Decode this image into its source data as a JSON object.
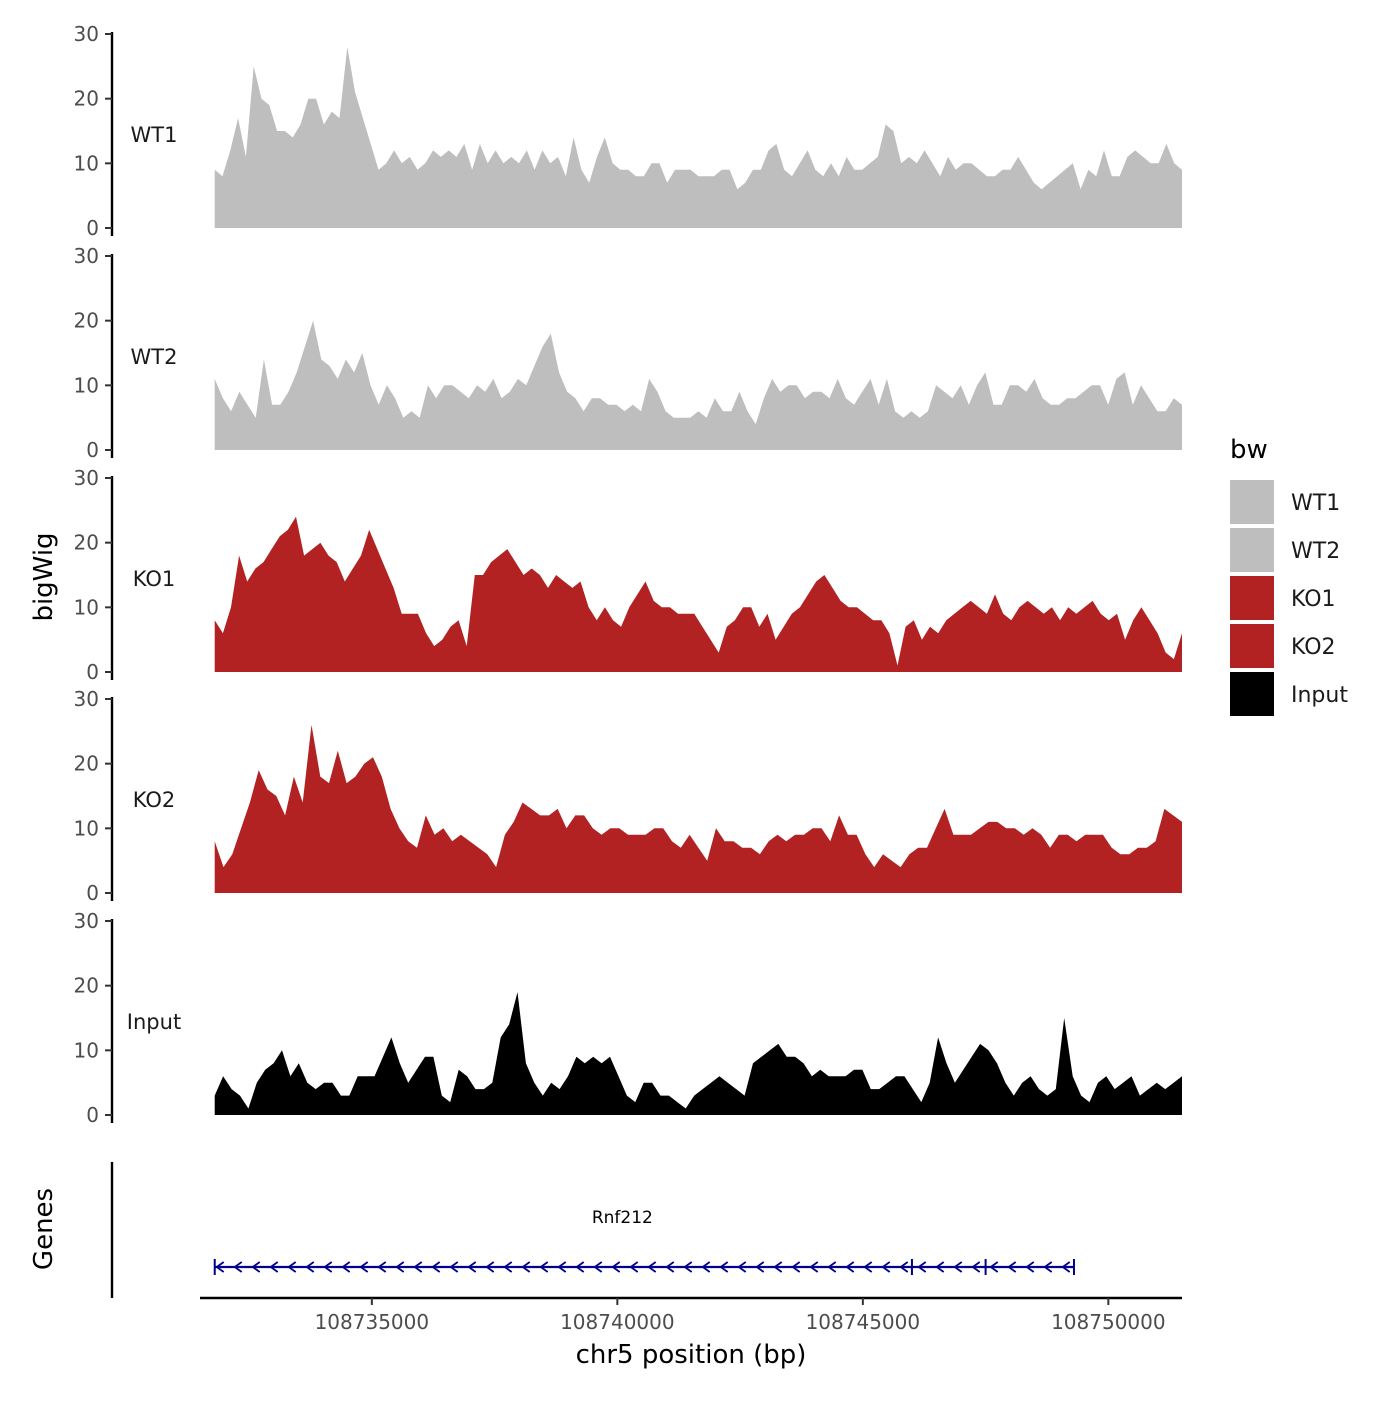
{
  "chart_data": {
    "type": "area",
    "x_title": "chr5 position (bp)",
    "y_title": "bigWig",
    "genes_title": "Genes",
    "xlim": [
      108731500,
      108751500
    ],
    "x_ticks": [
      108735000,
      108740000,
      108745000,
      108750000
    ],
    "x_tick_labels": [
      "108735000",
      "108740000",
      "108745000",
      "108750000"
    ],
    "ylim": [
      0,
      30
    ],
    "y_ticks": [
      0,
      10,
      20,
      30
    ],
    "y_tick_labels": [
      "0",
      "10",
      "20",
      "30"
    ],
    "track_start": 108731800,
    "track_end": 108751500,
    "legend": {
      "title": "bw",
      "entries": [
        {
          "name": "WT1",
          "color": "#bebebe"
        },
        {
          "name": "WT2",
          "color": "#bebebe"
        },
        {
          "name": "KO1",
          "color": "#b22222"
        },
        {
          "name": "KO2",
          "color": "#b22222"
        },
        {
          "name": "Input",
          "color": "#000000"
        }
      ]
    },
    "series": [
      {
        "name": "WT1",
        "color": "#bebebe",
        "values": [
          9,
          8,
          12,
          17,
          11,
          25,
          20,
          19,
          15,
          15,
          14,
          16,
          20,
          20,
          16,
          18,
          17,
          28,
          21,
          17,
          13,
          9,
          10,
          12,
          10,
          11,
          9,
          10,
          12,
          11,
          12,
          11,
          13,
          9,
          13,
          10,
          12,
          10,
          11,
          10,
          12,
          9,
          12,
          10,
          11,
          8,
          14,
          9,
          7,
          11,
          14,
          10,
          9,
          9,
          8,
          8,
          10,
          10,
          7,
          9,
          9,
          9,
          8,
          8,
          8,
          9,
          9,
          6,
          7,
          9,
          9,
          12,
          13,
          9,
          8,
          10,
          12,
          9,
          8,
          10,
          8,
          11,
          9,
          9,
          10,
          11,
          16,
          15,
          10,
          11,
          10,
          12,
          10,
          8,
          11,
          9,
          10,
          10,
          9,
          8,
          8,
          9,
          9,
          11,
          9,
          7,
          6,
          7,
          8,
          9,
          10,
          6,
          9,
          8,
          12,
          8,
          8,
          11,
          12,
          11,
          10,
          10,
          13,
          10,
          9
        ]
      },
      {
        "name": "WT2",
        "color": "#bebebe",
        "values": [
          11,
          8,
          6,
          9,
          7,
          5,
          14,
          7,
          7,
          9,
          12,
          16,
          20,
          14,
          13,
          11,
          14,
          12,
          15,
          10,
          7,
          10,
          8,
          5,
          6,
          5,
          10,
          8,
          10,
          10,
          9,
          8,
          10,
          9,
          11,
          8,
          9,
          11,
          10,
          13,
          16,
          18,
          12,
          9,
          8,
          6,
          8,
          8,
          7,
          7,
          6,
          7,
          6,
          11,
          9,
          6,
          5,
          5,
          5,
          6,
          5,
          8,
          6,
          6,
          9,
          6,
          4,
          8,
          11,
          9,
          10,
          10,
          8,
          9,
          9,
          8,
          11,
          8,
          7,
          9,
          11,
          7,
          11,
          6,
          5,
          6,
          5,
          6,
          10,
          9,
          8,
          10,
          7,
          10,
          12,
          7,
          7,
          10,
          10,
          9,
          11,
          8,
          7,
          7,
          8,
          8,
          9,
          10,
          10,
          7,
          11,
          12,
          7,
          10,
          8,
          6,
          6,
          8,
          7
        ]
      },
      {
        "name": "KO1",
        "color": "#b22222",
        "values": [
          8,
          6,
          10,
          18,
          14,
          16,
          17,
          19,
          21,
          22,
          24,
          18,
          19,
          20,
          18,
          17,
          14,
          16,
          18,
          22,
          19,
          16,
          13,
          9,
          9,
          9,
          6,
          4,
          5,
          7,
          8,
          4,
          15,
          15,
          17,
          18,
          19,
          17,
          15,
          16,
          15,
          13,
          15,
          14,
          13,
          14,
          10,
          8,
          10,
          8,
          7,
          10,
          12,
          14,
          11,
          10,
          10,
          9,
          9,
          9,
          7,
          5,
          3,
          7,
          8,
          10,
          10,
          7,
          9,
          5,
          7,
          9,
          10,
          12,
          14,
          15,
          13,
          11,
          10,
          10,
          9,
          8,
          8,
          6,
          1,
          7,
          8,
          5,
          7,
          6,
          8,
          9,
          10,
          11,
          10,
          9,
          12,
          9,
          8,
          10,
          11,
          10,
          9,
          10,
          8,
          10,
          9,
          10,
          11,
          9,
          8,
          9,
          5,
          8,
          10,
          8,
          6,
          3,
          2,
          6
        ]
      },
      {
        "name": "KO2",
        "color": "#b22222",
        "values": [
          8,
          4,
          6,
          10,
          14,
          19,
          16,
          15,
          12,
          18,
          14,
          26,
          18,
          17,
          22,
          17,
          18,
          20,
          21,
          18,
          13,
          10,
          8,
          7,
          12,
          9,
          10,
          8,
          9,
          8,
          7,
          6,
          4,
          9,
          11,
          14,
          13,
          12,
          12,
          13,
          10,
          12,
          12,
          10,
          9,
          10,
          10,
          9,
          9,
          9,
          10,
          10,
          8,
          7,
          9,
          7,
          5,
          10,
          8,
          8,
          7,
          7,
          6,
          8,
          9,
          8,
          9,
          9,
          10,
          10,
          8,
          12,
          9,
          9,
          6,
          4,
          6,
          5,
          4,
          6,
          7,
          7,
          10,
          13,
          9,
          9,
          9,
          10,
          11,
          11,
          10,
          10,
          9,
          10,
          9,
          7,
          9,
          9,
          8,
          9,
          9,
          9,
          7,
          6,
          6,
          7,
          7,
          8,
          13,
          12,
          11
        ]
      },
      {
        "name": "Input",
        "color": "#000000",
        "values": [
          3,
          6,
          4,
          3,
          1,
          5,
          7,
          8,
          10,
          6,
          8,
          5,
          4,
          5,
          5,
          3,
          3,
          6,
          6,
          6,
          9,
          12,
          8,
          5,
          7,
          9,
          9,
          3,
          2,
          7,
          6,
          4,
          4,
          5,
          12,
          14,
          19,
          8,
          5,
          3,
          5,
          4,
          6,
          9,
          8,
          9,
          8,
          9,
          6,
          3,
          2,
          5,
          5,
          3,
          3,
          2,
          1,
          3,
          4,
          5,
          6,
          5,
          4,
          3,
          8,
          9,
          10,
          11,
          9,
          9,
          8,
          6,
          7,
          6,
          6,
          6,
          7,
          7,
          4,
          4,
          5,
          6,
          6,
          4,
          2,
          5,
          12,
          8,
          5,
          7,
          9,
          11,
          10,
          8,
          5,
          3,
          5,
          6,
          4,
          3,
          4,
          15,
          6,
          3,
          2,
          5,
          6,
          4,
          5,
          6,
          3,
          4,
          5,
          4,
          5,
          6
        ]
      }
    ],
    "genes": [
      {
        "name": "Rnf212",
        "start": 108731800,
        "end": 108749300,
        "strand": "-",
        "color": "#00008b",
        "exon_ticks": [
          108746000,
          108747500
        ]
      }
    ]
  }
}
